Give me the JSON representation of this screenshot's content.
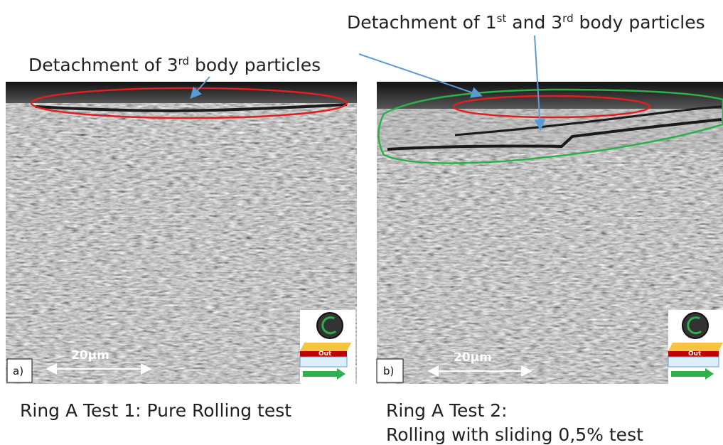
{
  "annotations": {
    "left": [
      {
        "text": "Detachment of 3"
      },
      {
        "text": "rd",
        "sup": true
      },
      {
        "text": " body particles"
      }
    ],
    "right": [
      {
        "text": "Detachment of 1"
      },
      {
        "text": "st",
        "sup": true
      },
      {
        "text": " and 3"
      },
      {
        "text": "rd",
        "sup": true
      },
      {
        "text": " body particles"
      }
    ]
  },
  "panels": [
    {
      "label": "a)",
      "scale": "20µm",
      "icon": "Out",
      "caption": [
        "Ring A Test 1: Pure Rolling test"
      ]
    },
    {
      "label": "b)",
      "scale": "20µm",
      "icon": "Out",
      "caption": [
        "Ring A Test 2:",
        "Rolling with sliding 0,5% test"
      ]
    }
  ]
}
